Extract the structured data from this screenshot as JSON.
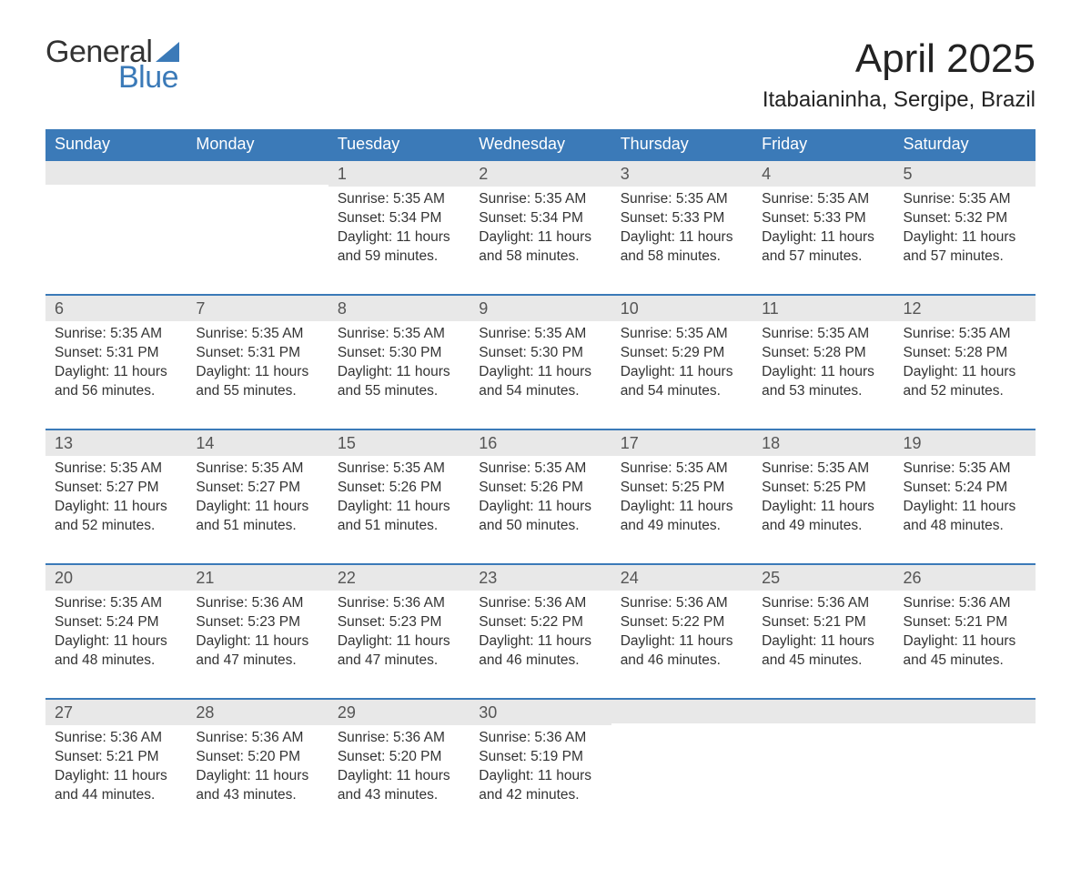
{
  "logo": {
    "word1": "General",
    "word2": "Blue"
  },
  "title": {
    "month": "April 2025",
    "location": "Itabaianinha, Sergipe, Brazil"
  },
  "colors": {
    "brand_blue": "#3b7ab8",
    "header_text": "#ffffff",
    "daynum_bg": "#e8e8e8",
    "daynum_text": "#555555",
    "body_text": "#333333",
    "background": "#ffffff"
  },
  "typography": {
    "title_fontsize": 44,
    "location_fontsize": 24,
    "header_fontsize": 18,
    "daynum_fontsize": 18,
    "cell_fontsize": 15.5
  },
  "layout": {
    "columns": 7,
    "row_top_border_color": "#3b7ab8",
    "row_top_border_width": 2
  },
  "days_of_week": [
    "Sunday",
    "Monday",
    "Tuesday",
    "Wednesday",
    "Thursday",
    "Friday",
    "Saturday"
  ],
  "weeks": [
    [
      {
        "empty": true
      },
      {
        "empty": true
      },
      {
        "day": "1",
        "sunrise": "Sunrise: 5:35 AM",
        "sunset": "Sunset: 5:34 PM",
        "daylight1": "Daylight: 11 hours",
        "daylight2": "and 59 minutes."
      },
      {
        "day": "2",
        "sunrise": "Sunrise: 5:35 AM",
        "sunset": "Sunset: 5:34 PM",
        "daylight1": "Daylight: 11 hours",
        "daylight2": "and 58 minutes."
      },
      {
        "day": "3",
        "sunrise": "Sunrise: 5:35 AM",
        "sunset": "Sunset: 5:33 PM",
        "daylight1": "Daylight: 11 hours",
        "daylight2": "and 58 minutes."
      },
      {
        "day": "4",
        "sunrise": "Sunrise: 5:35 AM",
        "sunset": "Sunset: 5:33 PM",
        "daylight1": "Daylight: 11 hours",
        "daylight2": "and 57 minutes."
      },
      {
        "day": "5",
        "sunrise": "Sunrise: 5:35 AM",
        "sunset": "Sunset: 5:32 PM",
        "daylight1": "Daylight: 11 hours",
        "daylight2": "and 57 minutes."
      }
    ],
    [
      {
        "day": "6",
        "sunrise": "Sunrise: 5:35 AM",
        "sunset": "Sunset: 5:31 PM",
        "daylight1": "Daylight: 11 hours",
        "daylight2": "and 56 minutes."
      },
      {
        "day": "7",
        "sunrise": "Sunrise: 5:35 AM",
        "sunset": "Sunset: 5:31 PM",
        "daylight1": "Daylight: 11 hours",
        "daylight2": "and 55 minutes."
      },
      {
        "day": "8",
        "sunrise": "Sunrise: 5:35 AM",
        "sunset": "Sunset: 5:30 PM",
        "daylight1": "Daylight: 11 hours",
        "daylight2": "and 55 minutes."
      },
      {
        "day": "9",
        "sunrise": "Sunrise: 5:35 AM",
        "sunset": "Sunset: 5:30 PM",
        "daylight1": "Daylight: 11 hours",
        "daylight2": "and 54 minutes."
      },
      {
        "day": "10",
        "sunrise": "Sunrise: 5:35 AM",
        "sunset": "Sunset: 5:29 PM",
        "daylight1": "Daylight: 11 hours",
        "daylight2": "and 54 minutes."
      },
      {
        "day": "11",
        "sunrise": "Sunrise: 5:35 AM",
        "sunset": "Sunset: 5:28 PM",
        "daylight1": "Daylight: 11 hours",
        "daylight2": "and 53 minutes."
      },
      {
        "day": "12",
        "sunrise": "Sunrise: 5:35 AM",
        "sunset": "Sunset: 5:28 PM",
        "daylight1": "Daylight: 11 hours",
        "daylight2": "and 52 minutes."
      }
    ],
    [
      {
        "day": "13",
        "sunrise": "Sunrise: 5:35 AM",
        "sunset": "Sunset: 5:27 PM",
        "daylight1": "Daylight: 11 hours",
        "daylight2": "and 52 minutes."
      },
      {
        "day": "14",
        "sunrise": "Sunrise: 5:35 AM",
        "sunset": "Sunset: 5:27 PM",
        "daylight1": "Daylight: 11 hours",
        "daylight2": "and 51 minutes."
      },
      {
        "day": "15",
        "sunrise": "Sunrise: 5:35 AM",
        "sunset": "Sunset: 5:26 PM",
        "daylight1": "Daylight: 11 hours",
        "daylight2": "and 51 minutes."
      },
      {
        "day": "16",
        "sunrise": "Sunrise: 5:35 AM",
        "sunset": "Sunset: 5:26 PM",
        "daylight1": "Daylight: 11 hours",
        "daylight2": "and 50 minutes."
      },
      {
        "day": "17",
        "sunrise": "Sunrise: 5:35 AM",
        "sunset": "Sunset: 5:25 PM",
        "daylight1": "Daylight: 11 hours",
        "daylight2": "and 49 minutes."
      },
      {
        "day": "18",
        "sunrise": "Sunrise: 5:35 AM",
        "sunset": "Sunset: 5:25 PM",
        "daylight1": "Daylight: 11 hours",
        "daylight2": "and 49 minutes."
      },
      {
        "day": "19",
        "sunrise": "Sunrise: 5:35 AM",
        "sunset": "Sunset: 5:24 PM",
        "daylight1": "Daylight: 11 hours",
        "daylight2": "and 48 minutes."
      }
    ],
    [
      {
        "day": "20",
        "sunrise": "Sunrise: 5:35 AM",
        "sunset": "Sunset: 5:24 PM",
        "daylight1": "Daylight: 11 hours",
        "daylight2": "and 48 minutes."
      },
      {
        "day": "21",
        "sunrise": "Sunrise: 5:36 AM",
        "sunset": "Sunset: 5:23 PM",
        "daylight1": "Daylight: 11 hours",
        "daylight2": "and 47 minutes."
      },
      {
        "day": "22",
        "sunrise": "Sunrise: 5:36 AM",
        "sunset": "Sunset: 5:23 PM",
        "daylight1": "Daylight: 11 hours",
        "daylight2": "and 47 minutes."
      },
      {
        "day": "23",
        "sunrise": "Sunrise: 5:36 AM",
        "sunset": "Sunset: 5:22 PM",
        "daylight1": "Daylight: 11 hours",
        "daylight2": "and 46 minutes."
      },
      {
        "day": "24",
        "sunrise": "Sunrise: 5:36 AM",
        "sunset": "Sunset: 5:22 PM",
        "daylight1": "Daylight: 11 hours",
        "daylight2": "and 46 minutes."
      },
      {
        "day": "25",
        "sunrise": "Sunrise: 5:36 AM",
        "sunset": "Sunset: 5:21 PM",
        "daylight1": "Daylight: 11 hours",
        "daylight2": "and 45 minutes."
      },
      {
        "day": "26",
        "sunrise": "Sunrise: 5:36 AM",
        "sunset": "Sunset: 5:21 PM",
        "daylight1": "Daylight: 11 hours",
        "daylight2": "and 45 minutes."
      }
    ],
    [
      {
        "day": "27",
        "sunrise": "Sunrise: 5:36 AM",
        "sunset": "Sunset: 5:21 PM",
        "daylight1": "Daylight: 11 hours",
        "daylight2": "and 44 minutes."
      },
      {
        "day": "28",
        "sunrise": "Sunrise: 5:36 AM",
        "sunset": "Sunset: 5:20 PM",
        "daylight1": "Daylight: 11 hours",
        "daylight2": "and 43 minutes."
      },
      {
        "day": "29",
        "sunrise": "Sunrise: 5:36 AM",
        "sunset": "Sunset: 5:20 PM",
        "daylight1": "Daylight: 11 hours",
        "daylight2": "and 43 minutes."
      },
      {
        "day": "30",
        "sunrise": "Sunrise: 5:36 AM",
        "sunset": "Sunset: 5:19 PM",
        "daylight1": "Daylight: 11 hours",
        "daylight2": "and 42 minutes."
      },
      {
        "empty": true
      },
      {
        "empty": true
      },
      {
        "empty": true
      }
    ]
  ]
}
